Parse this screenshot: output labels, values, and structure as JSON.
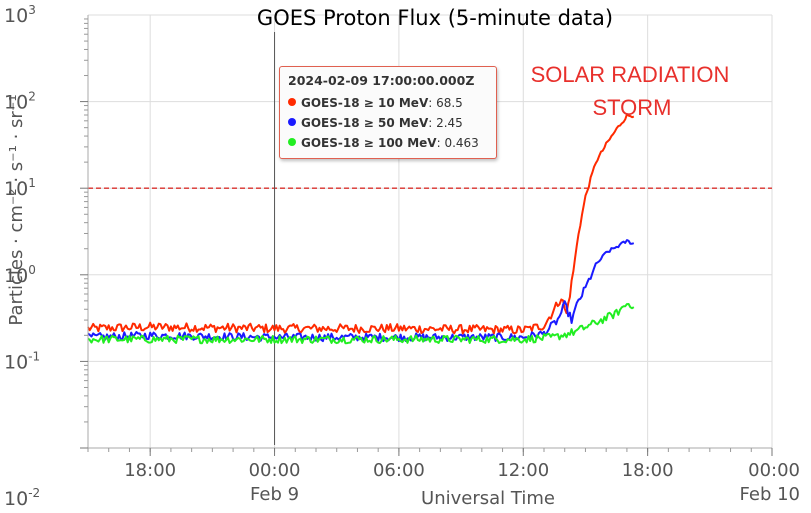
{
  "chart_data": {
    "type": "line",
    "title": "GOES Proton Flux (5-minute data)",
    "xlabel": "Universal Time",
    "ylabel": "Particles · cm⁻² · s⁻¹ · sr⁻¹",
    "yscale": "log",
    "ylim": [
      0.01,
      1000
    ],
    "y_ticks": [
      {
        "base": "10",
        "exp": "-2",
        "value": 0.01
      },
      {
        "base": "10",
        "exp": "-1",
        "value": 0.1
      },
      {
        "base": "10",
        "exp": "0",
        "value": 1
      },
      {
        "base": "10",
        "exp": "1",
        "value": 10
      },
      {
        "base": "10",
        "exp": "2",
        "value": 100
      },
      {
        "base": "10",
        "exp": "3",
        "value": 1000
      }
    ],
    "xlim": [
      "2024-02-08T15:00Z",
      "2024-02-10T00:00Z"
    ],
    "x_ticks": [
      {
        "value": "2024-02-08T18:00Z",
        "label": "18:00",
        "sublabel": ""
      },
      {
        "value": "2024-02-09T00:00Z",
        "label": "00:00",
        "sublabel": "Feb 9"
      },
      {
        "value": "2024-02-09T06:00Z",
        "label": "06:00",
        "sublabel": ""
      },
      {
        "value": "2024-02-09T12:00Z",
        "label": "12:00",
        "sublabel": ""
      },
      {
        "value": "2024-02-09T18:00Z",
        "label": "18:00",
        "sublabel": ""
      },
      {
        "value": "2024-02-10T00:00Z",
        "label": "00:00",
        "sublabel": "Feb 10"
      }
    ],
    "grid": true,
    "threshold": {
      "value": 10,
      "color": "#d9302c",
      "style": "dashed"
    },
    "crosshair_time": "2024-02-09T00:00Z",
    "annotation": [
      "SOLAR RADIATION",
      "STORM"
    ],
    "series": [
      {
        "name": "GOES-18 ≥ 10 MeV",
        "color": "#ff2a00",
        "points": [
          [
            "2024-02-08T15:00Z",
            0.24
          ],
          [
            "2024-02-08T18:00Z",
            0.25
          ],
          [
            "2024-02-09T00:00Z",
            0.24
          ],
          [
            "2024-02-09T06:00Z",
            0.24
          ],
          [
            "2024-02-09T12:00Z",
            0.23
          ],
          [
            "2024-02-09T13:00Z",
            0.26
          ],
          [
            "2024-02-09T13:30Z",
            0.4
          ],
          [
            "2024-02-09T13:50Z",
            0.55
          ],
          [
            "2024-02-09T14:05Z",
            0.35
          ],
          [
            "2024-02-09T14:20Z",
            0.8
          ],
          [
            "2024-02-09T14:40Z",
            3.0
          ],
          [
            "2024-02-09T15:00Z",
            8.0
          ],
          [
            "2024-02-09T15:30Z",
            20.0
          ],
          [
            "2024-02-09T16:00Z",
            32.0
          ],
          [
            "2024-02-09T16:30Z",
            48.0
          ],
          [
            "2024-02-09T17:00Z",
            68.5
          ],
          [
            "2024-02-09T17:20Z",
            70.0
          ]
        ]
      },
      {
        "name": "GOES-18 ≥ 50 MeV",
        "color": "#1a1aff",
        "points": [
          [
            "2024-02-08T15:00Z",
            0.19
          ],
          [
            "2024-02-08T18:00Z",
            0.2
          ],
          [
            "2024-02-09T00:00Z",
            0.19
          ],
          [
            "2024-02-09T06:00Z",
            0.19
          ],
          [
            "2024-02-09T12:00Z",
            0.19
          ],
          [
            "2024-02-09T13:00Z",
            0.21
          ],
          [
            "2024-02-09T13:40Z",
            0.3
          ],
          [
            "2024-02-09T14:00Z",
            0.45
          ],
          [
            "2024-02-09T14:20Z",
            0.3
          ],
          [
            "2024-02-09T14:40Z",
            0.5
          ],
          [
            "2024-02-09T15:00Z",
            0.7
          ],
          [
            "2024-02-09T15:30Z",
            1.3
          ],
          [
            "2024-02-09T16:00Z",
            1.8
          ],
          [
            "2024-02-09T16:30Z",
            2.1
          ],
          [
            "2024-02-09T17:00Z",
            2.45
          ],
          [
            "2024-02-09T17:20Z",
            2.3
          ]
        ]
      },
      {
        "name": "GOES-18 ≥ 100 MeV",
        "color": "#22ee22",
        "points": [
          [
            "2024-02-08T15:00Z",
            0.18
          ],
          [
            "2024-02-08T18:00Z",
            0.18
          ],
          [
            "2024-02-09T00:00Z",
            0.18
          ],
          [
            "2024-02-09T06:00Z",
            0.18
          ],
          [
            "2024-02-09T12:00Z",
            0.18
          ],
          [
            "2024-02-09T13:30Z",
            0.19
          ],
          [
            "2024-02-09T14:30Z",
            0.22
          ],
          [
            "2024-02-09T15:30Z",
            0.28
          ],
          [
            "2024-02-09T16:30Z",
            0.36
          ],
          [
            "2024-02-09T17:00Z",
            0.463
          ],
          [
            "2024-02-09T17:20Z",
            0.45
          ]
        ]
      }
    ],
    "tooltip": {
      "time": "2024-02-09 17:00:00.000Z",
      "rows": [
        {
          "color": "#ff2a00",
          "name": "GOES-18 ≥ 10 MeV",
          "value": "68.5"
        },
        {
          "color": "#1a1aff",
          "name": "GOES-18 ≥ 50 MeV",
          "value": "2.45"
        },
        {
          "color": "#22ee22",
          "name": "GOES-18 ≥ 100 MeV",
          "value": "0.463"
        }
      ]
    }
  }
}
